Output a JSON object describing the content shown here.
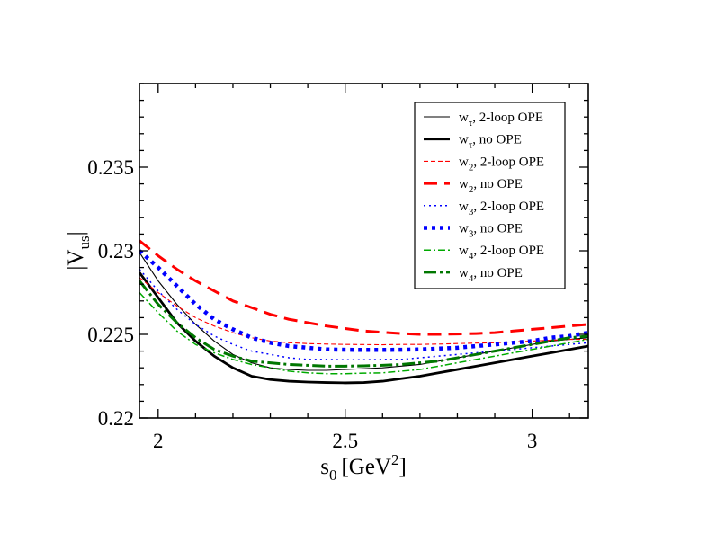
{
  "chart_data": {
    "type": "line",
    "title": "",
    "xlabel": {
      "main": "s",
      "sub": "0",
      "unit": "[GeV",
      "sup": "2",
      "close": "]"
    },
    "ylabel": {
      "main": "|V",
      "sub": "us",
      "close": "|"
    },
    "xlim": [
      1.95,
      3.15
    ],
    "ylim": [
      0.22,
      0.24
    ],
    "xticks": [
      2,
      2.5,
      3
    ],
    "xtick_labels": [
      "2",
      "2.5",
      "3"
    ],
    "yticks": [
      0.22,
      0.225,
      0.23,
      0.235
    ],
    "ytick_labels": [
      "0.22",
      "0.225",
      "0.23",
      "0.235"
    ],
    "grid": false,
    "legend_position": "top-right",
    "x": [
      1.95,
      2.0,
      2.05,
      2.1,
      2.15,
      2.2,
      2.25,
      2.3,
      2.35,
      2.4,
      2.45,
      2.5,
      2.55,
      2.6,
      2.65,
      2.7,
      2.75,
      2.8,
      2.85,
      2.9,
      2.95,
      3.0,
      3.05,
      3.1,
      3.15
    ],
    "series": [
      {
        "name": "w",
        "sub": "τ",
        "label": ", 2-loop OPE",
        "color": "#000000",
        "width": 1.1,
        "dash": "",
        "values": [
          0.2299,
          0.2282,
          0.2268,
          0.2256,
          0.2246,
          0.2238,
          0.2233,
          0.223,
          0.2229,
          0.22285,
          0.22285,
          0.2229,
          0.22295,
          0.223,
          0.2231,
          0.2232,
          0.2234,
          0.2236,
          0.2238,
          0.224,
          0.2242,
          0.2244,
          0.2246,
          0.2247,
          0.2248
        ]
      },
      {
        "name": "w",
        "sub": "τ",
        "label": ", no OPE",
        "color": "#000000",
        "width": 2.8,
        "dash": "",
        "values": [
          0.2287,
          0.2272,
          0.2257,
          0.2246,
          0.2237,
          0.223,
          0.2225,
          0.2223,
          0.2222,
          0.22215,
          0.22212,
          0.2221,
          0.22212,
          0.2222,
          0.22235,
          0.2225,
          0.2227,
          0.2229,
          0.2231,
          0.2233,
          0.2235,
          0.2237,
          0.2239,
          0.2241,
          0.2243
        ]
      },
      {
        "name": "w",
        "sub": "2",
        "label": ", 2-loop OPE",
        "color": "#ff0000",
        "width": 1.1,
        "dash": "5,3",
        "values": [
          0.2284,
          0.2275,
          0.2267,
          0.226,
          0.2255,
          0.2251,
          0.2248,
          0.2246,
          0.2245,
          0.22445,
          0.22442,
          0.2244,
          0.22439,
          0.22438,
          0.2244,
          0.2244,
          0.22442,
          0.22445,
          0.22448,
          0.2245,
          0.22455,
          0.2246,
          0.22465,
          0.2247,
          0.2247
        ]
      },
      {
        "name": "w",
        "sub": "2",
        "label": ", no OPE",
        "color": "#ff0000",
        "width": 3.0,
        "dash": "15,8",
        "values": [
          0.2306,
          0.2297,
          0.2289,
          0.2282,
          0.2276,
          0.227,
          0.2266,
          0.2262,
          0.2259,
          0.2257,
          0.2255,
          0.22535,
          0.2252,
          0.22512,
          0.22505,
          0.225,
          0.225,
          0.22502,
          0.22505,
          0.2251,
          0.2252,
          0.2253,
          0.2254,
          0.2255,
          0.2256
        ]
      },
      {
        "name": "w",
        "sub": "3",
        "label": ", 2-loop OPE",
        "color": "#0000ff",
        "width": 1.5,
        "dash": "2,4",
        "values": [
          0.2289,
          0.2276,
          0.2265,
          0.2256,
          0.2249,
          0.2244,
          0.224,
          0.2238,
          0.2236,
          0.2235,
          0.2235,
          0.22348,
          0.22348,
          0.2235,
          0.2235,
          0.2236,
          0.2237,
          0.2238,
          0.2239,
          0.224,
          0.2241,
          0.2242,
          0.2243,
          0.2244,
          0.2245
        ]
      },
      {
        "name": "w",
        "sub": "3",
        "label": ", no OPE",
        "color": "#0000ff",
        "width": 4.5,
        "dash": "4,5",
        "values": [
          0.23,
          0.229,
          0.2279,
          0.2268,
          0.2259,
          0.2253,
          0.2248,
          0.2245,
          0.2243,
          0.2242,
          0.2241,
          0.22408,
          0.22407,
          0.22407,
          0.22408,
          0.2241,
          0.22415,
          0.2242,
          0.2243,
          0.2244,
          0.2245,
          0.2246,
          0.2248,
          0.2249,
          0.2251
        ]
      },
      {
        "name": "w",
        "sub": "4",
        "label": ", 2-loop OPE",
        "color": "#00aa00",
        "width": 1.5,
        "dash": "8,3,2,3",
        "values": [
          0.2275,
          0.2263,
          0.2252,
          0.2244,
          0.2239,
          0.2235,
          0.2232,
          0.223,
          0.2228,
          0.2227,
          0.22265,
          0.22265,
          0.22268,
          0.2227,
          0.2228,
          0.2229,
          0.2231,
          0.2233,
          0.2235,
          0.2237,
          0.2239,
          0.2241,
          0.2243,
          0.2245,
          0.2247
        ]
      },
      {
        "name": "w",
        "sub": "4",
        "label": ", no OPE",
        "color": "#007700",
        "width": 3.0,
        "dash": "14,4,3,4",
        "values": [
          0.2282,
          0.2268,
          0.2257,
          0.2248,
          0.2241,
          0.2237,
          0.2234,
          0.2233,
          0.2232,
          0.22315,
          0.2231,
          0.2231,
          0.22312,
          0.22315,
          0.2232,
          0.2233,
          0.2234,
          0.2236,
          0.2238,
          0.224,
          0.2242,
          0.2244,
          0.2246,
          0.2248,
          0.2249
        ]
      }
    ]
  }
}
